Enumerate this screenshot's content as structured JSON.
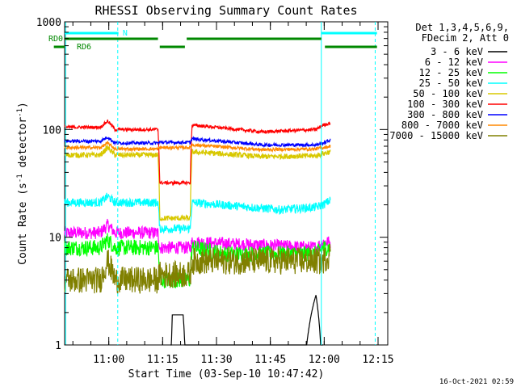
{
  "chart_data": {
    "type": "line",
    "title": "RHESSI Observing Summary Count Rates",
    "xlabel": "Start Time (03-Sep-10 10:47:42)",
    "ylabel_main": "Count Rate (s",
    "ylabel_sup1": "-1",
    "ylabel_mid": " detector",
    "ylabel_sup2": "-1",
    "ylabel_end": ")",
    "yscale": "log",
    "ylim": [
      1,
      1000
    ],
    "xlim_minutes": [
      0,
      90
    ],
    "x_ticks": [
      {
        "label": "11:00",
        "minute": 12.3
      },
      {
        "label": "11:15",
        "minute": 27.3
      },
      {
        "label": "11:30",
        "minute": 42.3
      },
      {
        "label": "11:45",
        "minute": 57.3
      },
      {
        "label": "12:00",
        "minute": 72.3
      },
      {
        "label": "12:15",
        "minute": 87.3
      }
    ],
    "y_ticks": [
      {
        "label": "1",
        "value": 1
      },
      {
        "label": "10",
        "value": 10
      },
      {
        "label": "100",
        "value": 100
      },
      {
        "label": "1000",
        "value": 1000
      }
    ],
    "legend": {
      "position": "top-right",
      "header1": "Det 1,3,4,5,6,9,",
      "header2": "FDecim 2, Att 0"
    },
    "series": [
      {
        "name": "3 - 6 keV",
        "color": "#000000",
        "noise": 0.0,
        "segments": [
          [
            29.5,
            0.0
          ],
          [
            30,
            1.9
          ],
          [
            33,
            1.9
          ],
          [
            34,
            0.0
          ],
          [
            66,
            0.0
          ],
          [
            68,
            1.4
          ],
          [
            70,
            2.9
          ],
          [
            72,
            0.0
          ]
        ]
      },
      {
        "name": "6 - 12 keV",
        "color": "#ff00ff",
        "noise": 0.12,
        "segments": [
          [
            0,
            11
          ],
          [
            10,
            11
          ],
          [
            12,
            13
          ],
          [
            14,
            11
          ],
          [
            26,
            11
          ],
          [
            26.5,
            8
          ],
          [
            35,
            8
          ],
          [
            35.5,
            9
          ],
          [
            70,
            8
          ],
          [
            72,
            9
          ],
          [
            74,
            9
          ]
        ]
      },
      {
        "name": "12 - 25 keV",
        "color": "#00ff00",
        "noise": 0.15,
        "segments": [
          [
            0,
            8
          ],
          [
            10,
            8
          ],
          [
            12,
            9.5
          ],
          [
            14,
            8
          ],
          [
            26,
            8
          ],
          [
            26.5,
            4
          ],
          [
            35,
            4
          ],
          [
            35.5,
            8
          ],
          [
            45,
            7
          ],
          [
            70,
            7
          ],
          [
            72,
            8
          ],
          [
            74,
            8
          ]
        ]
      },
      {
        "name": "25 - 50 keV",
        "color": "#00ffff",
        "noise": 0.08,
        "segments": [
          [
            0,
            21
          ],
          [
            10,
            21
          ],
          [
            12,
            24
          ],
          [
            14,
            21
          ],
          [
            26,
            21
          ],
          [
            26.5,
            12
          ],
          [
            35,
            12
          ],
          [
            35.5,
            21
          ],
          [
            60,
            18
          ],
          [
            70,
            19
          ],
          [
            72,
            20
          ],
          [
            74,
            22
          ]
        ]
      },
      {
        "name": "50 - 100 keV",
        "color": "#d8c800",
        "noise": 0.05,
        "segments": [
          [
            0,
            58
          ],
          [
            10,
            58
          ],
          [
            12,
            68
          ],
          [
            14,
            58
          ],
          [
            26,
            58
          ],
          [
            26.5,
            15
          ],
          [
            35,
            15
          ],
          [
            35.5,
            62
          ],
          [
            55,
            56
          ],
          [
            70,
            57
          ],
          [
            72,
            60
          ],
          [
            74,
            62
          ]
        ]
      },
      {
        "name": "100 - 300 keV",
        "color": "#ff0000",
        "noise": 0.03,
        "segments": [
          [
            0,
            105
          ],
          [
            10,
            105
          ],
          [
            12,
            120
          ],
          [
            14,
            100
          ],
          [
            26,
            100
          ],
          [
            26.5,
            32
          ],
          [
            35,
            32
          ],
          [
            35.5,
            110
          ],
          [
            55,
            95
          ],
          [
            70,
            100
          ],
          [
            72,
            110
          ],
          [
            74,
            115
          ]
        ]
      },
      {
        "name": "300 - 800 keV",
        "color": "#0000ff",
        "noise": 0.03,
        "segments": [
          [
            0,
            78
          ],
          [
            10,
            78
          ],
          [
            12,
            85
          ],
          [
            14,
            75
          ],
          [
            26,
            75
          ],
          [
            26.5,
            76
          ],
          [
            35,
            76
          ],
          [
            35.5,
            82
          ],
          [
            55,
            72
          ],
          [
            70,
            72
          ],
          [
            72,
            75
          ],
          [
            74,
            80
          ]
        ]
      },
      {
        "name": "800 - 7000 keV",
        "color": "#ff8800",
        "noise": 0.03,
        "segments": [
          [
            0,
            68
          ],
          [
            10,
            68
          ],
          [
            12,
            75
          ],
          [
            14,
            66
          ],
          [
            26,
            66
          ],
          [
            26.5,
            68
          ],
          [
            35,
            68
          ],
          [
            35.5,
            72
          ],
          [
            55,
            65
          ],
          [
            70,
            66
          ],
          [
            72,
            68
          ],
          [
            74,
            70
          ]
        ]
      },
      {
        "name": "7000 - 15000 keV",
        "color": "#808000",
        "noise": 0.25,
        "segments": [
          [
            0,
            4
          ],
          [
            10,
            4
          ],
          [
            12,
            6
          ],
          [
            14,
            4
          ],
          [
            26,
            4
          ],
          [
            26.5,
            4.5
          ],
          [
            35,
            4.5
          ],
          [
            35.5,
            6
          ],
          [
            70,
            6
          ],
          [
            72,
            6
          ],
          [
            74,
            7
          ]
        ]
      }
    ],
    "annotations": {
      "n_label": "N",
      "rd0_label": "RD0",
      "rd6_label": "RD6"
    },
    "timestamp": "16-Oct-2021 02:59"
  }
}
